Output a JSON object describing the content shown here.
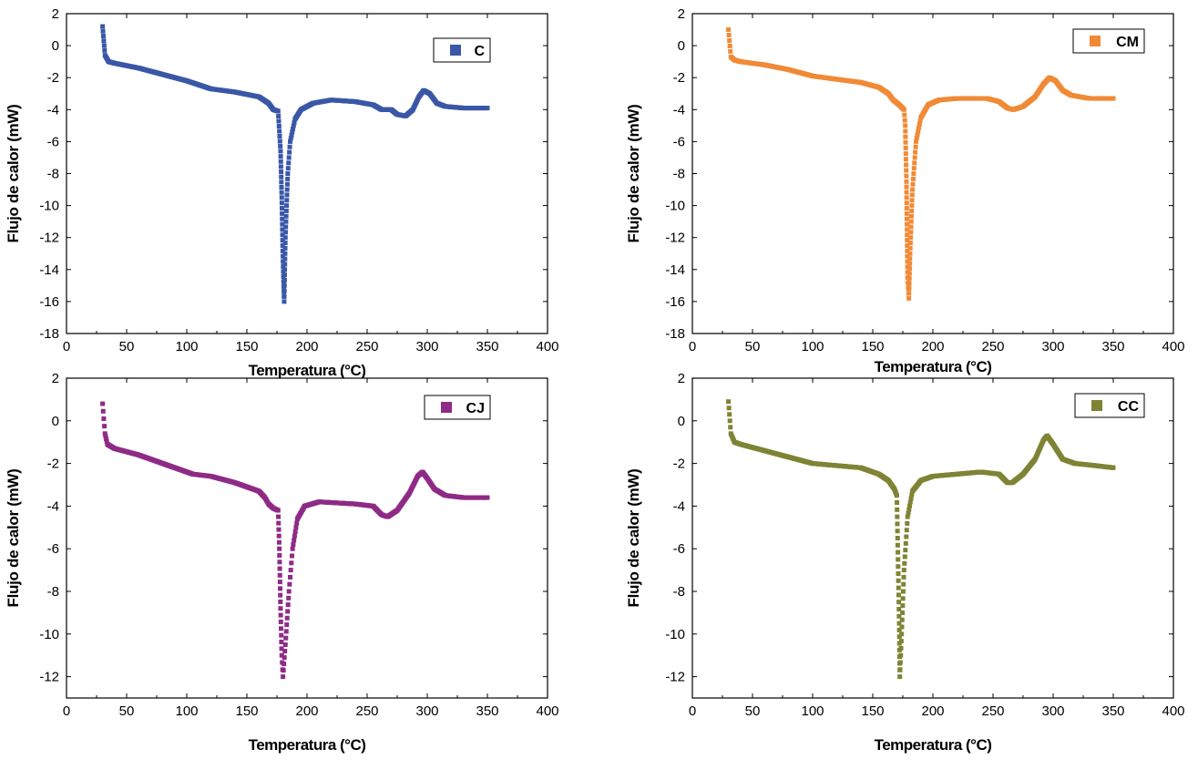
{
  "figure": {
    "xlabel": "Temperatura (°C)",
    "ylabel": "Flujo de calor (mW)"
  },
  "chart_data": [
    {
      "type": "scatter",
      "legend": "C",
      "color": "#3a57a7",
      "title": "",
      "xlabel": "Temperatura (°C)",
      "ylabel": "Flujo de calor (mW)",
      "xlim": [
        0,
        400
      ],
      "ylim": [
        -18,
        2
      ],
      "xticks": [
        "0",
        "50",
        "100",
        "150",
        "200",
        "250",
        "300",
        "350",
        "400"
      ],
      "yticks": [
        "2",
        "0",
        "-2",
        "-4",
        "-6",
        "-8",
        "-10",
        "-12",
        "-14",
        "-16",
        "-18"
      ],
      "legend_position": "top-right",
      "series": [
        {
          "name": "C",
          "points": [
            [
              30,
              1.2
            ],
            [
              32,
              -0.6
            ],
            [
              35,
              -1.0
            ],
            [
              40,
              -1.1
            ],
            [
              60,
              -1.4
            ],
            [
              80,
              -1.8
            ],
            [
              100,
              -2.2
            ],
            [
              120,
              -2.7
            ],
            [
              140,
              -2.9
            ],
            [
              160,
              -3.2
            ],
            [
              168,
              -3.6
            ],
            [
              172,
              -4.0
            ],
            [
              176,
              -4.1
            ],
            [
              178,
              -6.6
            ],
            [
              179,
              -9.5
            ],
            [
              180,
              -13.5
            ],
            [
              181,
              -16.0
            ],
            [
              182,
              -12.0
            ],
            [
              184,
              -8.0
            ],
            [
              186,
              -6.0
            ],
            [
              190,
              -4.6
            ],
            [
              195,
              -4.0
            ],
            [
              205,
              -3.6
            ],
            [
              220,
              -3.4
            ],
            [
              240,
              -3.5
            ],
            [
              255,
              -3.7
            ],
            [
              262,
              -4.0
            ],
            [
              270,
              -4.0
            ],
            [
              275,
              -4.3
            ],
            [
              282,
              -4.4
            ],
            [
              288,
              -4.0
            ],
            [
              293,
              -3.2
            ],
            [
              297,
              -2.8
            ],
            [
              302,
              -3.0
            ],
            [
              308,
              -3.6
            ],
            [
              315,
              -3.8
            ],
            [
              330,
              -3.9
            ],
            [
              350,
              -3.9
            ]
          ]
        }
      ]
    },
    {
      "type": "scatter",
      "legend": "CM",
      "color": "#f08a36",
      "title": "",
      "xlabel": "Temperatura (°C)",
      "ylabel": "Flujo de calor (mW)",
      "xlim": [
        0,
        400
      ],
      "ylim": [
        -18,
        2
      ],
      "xticks": [
        "0",
        "50",
        "100",
        "150",
        "200",
        "250",
        "300",
        "350",
        "400"
      ],
      "yticks": [
        "2",
        "0",
        "-2",
        "-4",
        "-6",
        "-8",
        "-10",
        "-12",
        "-14",
        "-16",
        "-18"
      ],
      "legend_position": "top-right",
      "series": [
        {
          "name": "CM",
          "points": [
            [
              30,
              1.0
            ],
            [
              32,
              -0.7
            ],
            [
              35,
              -0.9
            ],
            [
              40,
              -1.0
            ],
            [
              60,
              -1.2
            ],
            [
              80,
              -1.5
            ],
            [
              100,
              -1.9
            ],
            [
              120,
              -2.1
            ],
            [
              140,
              -2.3
            ],
            [
              155,
              -2.6
            ],
            [
              163,
              -3.0
            ],
            [
              167,
              -3.4
            ],
            [
              172,
              -3.7
            ],
            [
              176,
              -4.0
            ],
            [
              177,
              -5.0
            ],
            [
              178,
              -8.5
            ],
            [
              179,
              -14.5
            ],
            [
              180,
              -15.8
            ],
            [
              181,
              -13.0
            ],
            [
              183,
              -9.0
            ],
            [
              186,
              -6.0
            ],
            [
              190,
              -4.5
            ],
            [
              196,
              -3.7
            ],
            [
              205,
              -3.4
            ],
            [
              220,
              -3.3
            ],
            [
              245,
              -3.3
            ],
            [
              255,
              -3.5
            ],
            [
              262,
              -3.9
            ],
            [
              267,
              -4.0
            ],
            [
              275,
              -3.8
            ],
            [
              285,
              -3.2
            ],
            [
              292,
              -2.4
            ],
            [
              297,
              -2.0
            ],
            [
              302,
              -2.2
            ],
            [
              308,
              -2.8
            ],
            [
              315,
              -3.1
            ],
            [
              330,
              -3.3
            ],
            [
              350,
              -3.3
            ]
          ]
        }
      ]
    },
    {
      "type": "scatter",
      "legend": "CJ",
      "color": "#8e2b86",
      "title": "",
      "xlabel": "Temperatura (°C)",
      "ylabel": "Flujo de calor (mW)",
      "xlim": [
        0,
        400
      ],
      "ylim": [
        -13,
        2
      ],
      "xticks": [
        "0",
        "50",
        "100",
        "150",
        "200",
        "250",
        "300",
        "350",
        "400"
      ],
      "yticks": [
        "2",
        "0",
        "-2",
        "-4",
        "-6",
        "-8",
        "-10",
        "-12"
      ],
      "legend_position": "top-right",
      "series": [
        {
          "name": "CJ",
          "points": [
            [
              30,
              0.8
            ],
            [
              32,
              -0.6
            ],
            [
              34,
              -1.1
            ],
            [
              40,
              -1.3
            ],
            [
              60,
              -1.6
            ],
            [
              80,
              -2.0
            ],
            [
              100,
              -2.4
            ],
            [
              105,
              -2.5
            ],
            [
              120,
              -2.6
            ],
            [
              140,
              -2.9
            ],
            [
              160,
              -3.3
            ],
            [
              165,
              -3.6
            ],
            [
              168,
              -3.9
            ],
            [
              172,
              -4.1
            ],
            [
              176,
              -4.2
            ],
            [
              177,
              -6.0
            ],
            [
              178,
              -8.8
            ],
            [
              179,
              -11.0
            ],
            [
              180,
              -12.0
            ],
            [
              182,
              -10.5
            ],
            [
              185,
              -8.0
            ],
            [
              188,
              -6.0
            ],
            [
              192,
              -4.6
            ],
            [
              198,
              -4.0
            ],
            [
              210,
              -3.8
            ],
            [
              240,
              -3.9
            ],
            [
              255,
              -4.0
            ],
            [
              262,
              -4.4
            ],
            [
              267,
              -4.5
            ],
            [
              275,
              -4.2
            ],
            [
              285,
              -3.4
            ],
            [
              292,
              -2.6
            ],
            [
              296,
              -2.4
            ],
            [
              300,
              -2.7
            ],
            [
              306,
              -3.2
            ],
            [
              315,
              -3.5
            ],
            [
              330,
              -3.6
            ],
            [
              350,
              -3.6
            ]
          ]
        }
      ]
    },
    {
      "type": "scatter",
      "legend": "CC",
      "color": "#7e8434",
      "title": "",
      "xlabel": "Temperatura (°C)",
      "ylabel": "Flujo de calor (mW)",
      "xlim": [
        0,
        400
      ],
      "ylim": [
        -13,
        2
      ],
      "xticks": [
        "0",
        "50",
        "100",
        "150",
        "200",
        "250",
        "300",
        "350",
        "400"
      ],
      "yticks": [
        "2",
        "0",
        "-2",
        "-4",
        "-6",
        "-8",
        "-10",
        "-12"
      ],
      "legend_position": "top-right",
      "series": [
        {
          "name": "CC",
          "points": [
            [
              30,
              0.9
            ],
            [
              32,
              -0.6
            ],
            [
              35,
              -1.0
            ],
            [
              40,
              -1.1
            ],
            [
              60,
              -1.4
            ],
            [
              80,
              -1.7
            ],
            [
              100,
              -2.0
            ],
            [
              120,
              -2.1
            ],
            [
              140,
              -2.2
            ],
            [
              155,
              -2.5
            ],
            [
              163,
              -2.8
            ],
            [
              168,
              -3.2
            ],
            [
              170,
              -3.5
            ],
            [
              171,
              -6.5
            ],
            [
              172,
              -9.5
            ],
            [
              172.5,
              -12.0
            ],
            [
              174,
              -10.0
            ],
            [
              176,
              -7.0
            ],
            [
              179,
              -4.5
            ],
            [
              183,
              -3.3
            ],
            [
              190,
              -2.8
            ],
            [
              200,
              -2.6
            ],
            [
              220,
              -2.5
            ],
            [
              240,
              -2.4
            ],
            [
              255,
              -2.5
            ],
            [
              262,
              -2.9
            ],
            [
              266,
              -2.9
            ],
            [
              275,
              -2.5
            ],
            [
              285,
              -1.8
            ],
            [
              292,
              -0.9
            ],
            [
              295,
              -0.7
            ],
            [
              300,
              -1.1
            ],
            [
              308,
              -1.8
            ],
            [
              318,
              -2.0
            ],
            [
              335,
              -2.1
            ],
            [
              350,
              -2.2
            ]
          ]
        }
      ]
    }
  ]
}
